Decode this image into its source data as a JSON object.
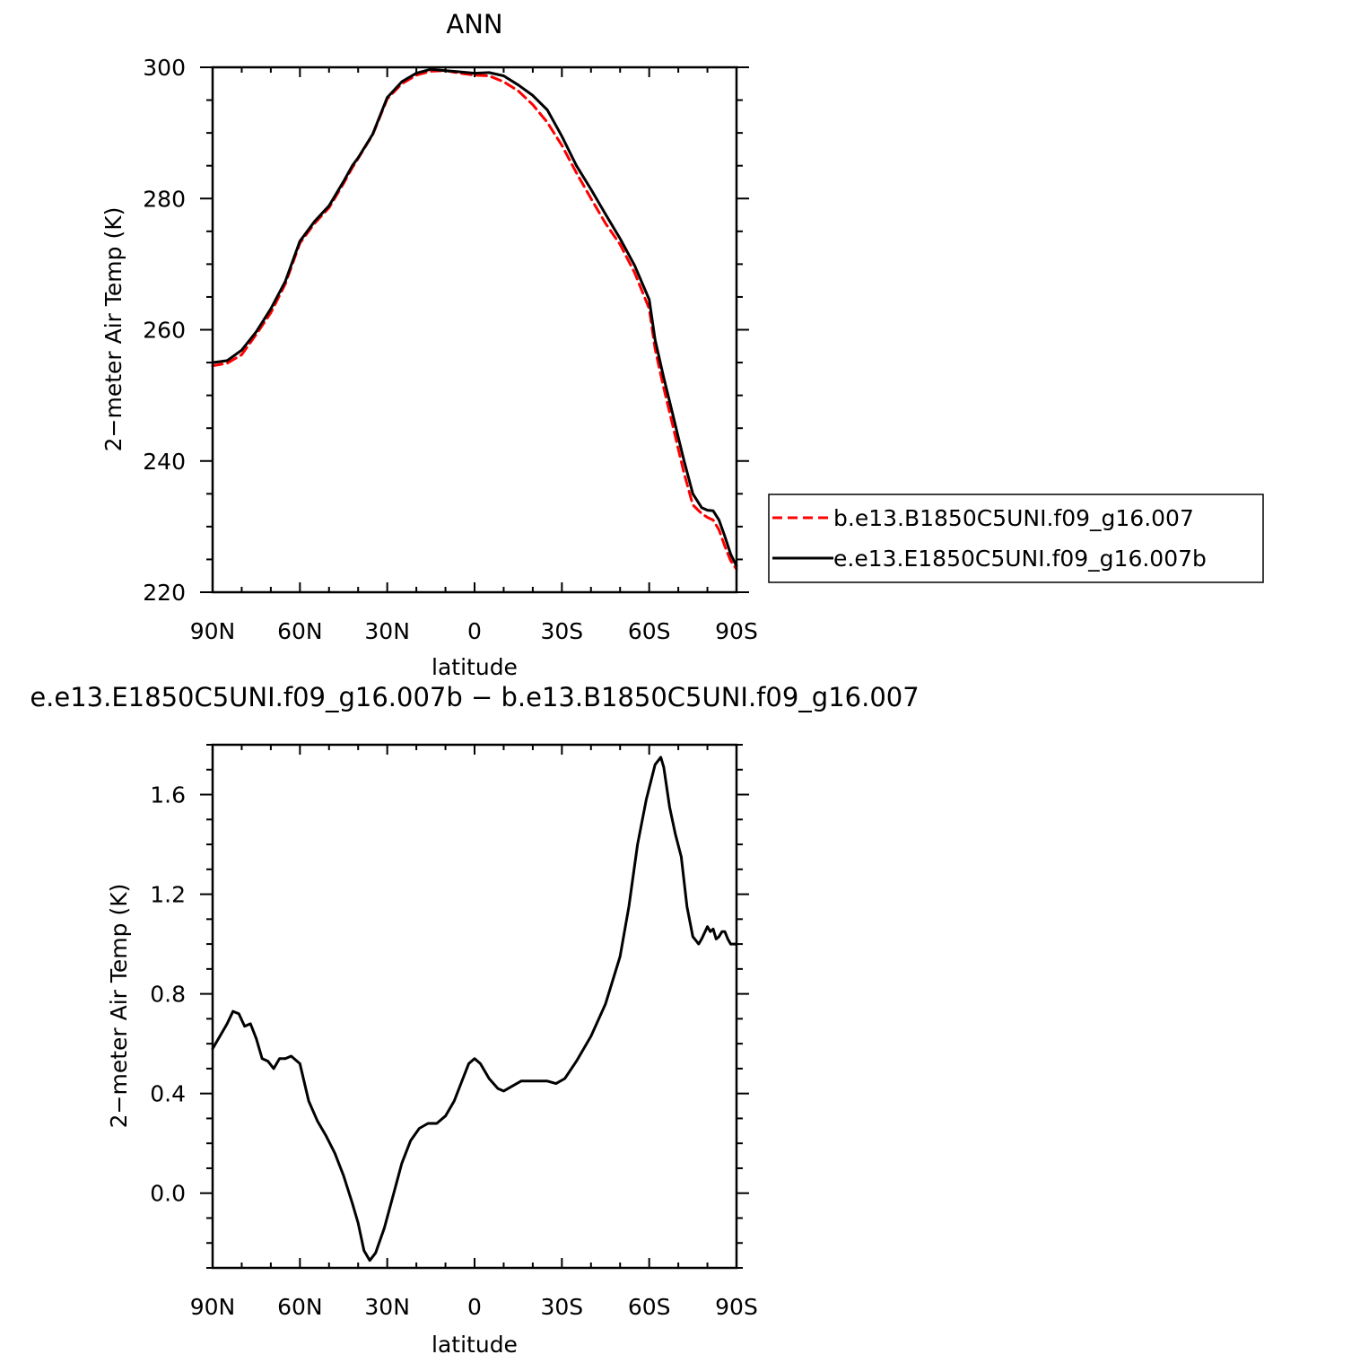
{
  "chart_data": [
    {
      "type": "line",
      "title": "ANN",
      "xlabel": "latitude",
      "ylabel": "2−meter Air Temp (K)",
      "xlim": [
        90,
        -90
      ],
      "ylim": [
        220,
        300
      ],
      "xticks": [
        90,
        60,
        30,
        0,
        -30,
        -60,
        -90
      ],
      "xticklabels": [
        "90N",
        "60N",
        "30N",
        "0",
        "30S",
        "60S",
        "90S"
      ],
      "yticks": [
        220,
        240,
        260,
        280,
        300
      ],
      "yticklabels": [
        "220",
        "240",
        "260",
        "280",
        "300"
      ],
      "legend_position": "right",
      "series": [
        {
          "name": "b.e13.B1850C5UNI.f09_g16.007",
          "color": "#ff0000",
          "style": "dashed",
          "x": [
            90,
            85,
            80,
            75,
            70,
            65,
            60,
            55,
            50,
            45,
            42,
            40,
            35,
            30,
            25,
            20,
            15,
            10,
            5,
            0,
            -5,
            -10,
            -15,
            -20,
            -25,
            -30,
            -35,
            -40,
            -45,
            -50,
            -55,
            -60,
            -62,
            -65,
            -68,
            -70,
            -72,
            -75,
            -78,
            -80,
            -82,
            -84,
            -86,
            -88,
            -90
          ],
          "y": [
            254.5,
            254.9,
            256.2,
            259.3,
            262.6,
            267.0,
            273.2,
            276.2,
            278.6,
            282.3,
            284.7,
            286.1,
            289.7,
            295.2,
            297.5,
            298.8,
            299.4,
            299.5,
            299.1,
            298.8,
            298.7,
            297.8,
            296.4,
            294.3,
            291.6,
            288.1,
            283.9,
            280.0,
            276.2,
            273.0,
            268.7,
            263.2,
            257.1,
            251.1,
            245.6,
            241.8,
            238.1,
            233.3,
            232.0,
            231.4,
            231.0,
            229.5,
            227.0,
            224.8,
            223.5
          ]
        },
        {
          "name": "e.e13.E1850C5UNI.f09_g16.007b",
          "color": "#000000",
          "style": "solid",
          "x": [
            90,
            85,
            80,
            75,
            70,
            65,
            60,
            55,
            50,
            45,
            42,
            40,
            35,
            30,
            25,
            20,
            15,
            10,
            5,
            0,
            -5,
            -10,
            -15,
            -20,
            -25,
            -30,
            -35,
            -40,
            -45,
            -50,
            -55,
            -60,
            -62,
            -65,
            -68,
            -70,
            -72,
            -75,
            -78,
            -80,
            -82,
            -84,
            -86,
            -88,
            -90
          ],
          "y": [
            255.0,
            255.3,
            256.9,
            259.7,
            263.2,
            267.4,
            273.5,
            276.5,
            278.9,
            282.6,
            285.0,
            286.2,
            289.8,
            295.4,
            297.8,
            299.1,
            299.7,
            299.5,
            299.3,
            299.1,
            299.2,
            298.7,
            297.3,
            295.7,
            293.5,
            289.5,
            285.0,
            281.4,
            277.6,
            273.9,
            269.8,
            264.6,
            258.5,
            252.7,
            247.3,
            243.6,
            240.0,
            235.0,
            232.9,
            232.5,
            232.4,
            231.0,
            228.5,
            225.8,
            224.0
          ]
        }
      ]
    },
    {
      "type": "line",
      "title": "e.e13.E1850C5UNI.f09_g16.007b − b.e13.B1850C5UNI.f09_g16.007",
      "xlabel": "latitude",
      "ylabel": "2−meter Air Temp (K)",
      "xlim": [
        90,
        -90
      ],
      "ylim": [
        -0.3,
        1.8
      ],
      "xticks": [
        90,
        60,
        30,
        0,
        -30,
        -60,
        -90
      ],
      "xticklabels": [
        "90N",
        "60N",
        "30N",
        "0",
        "30S",
        "60S",
        "90S"
      ],
      "yticks": [
        0.0,
        0.4,
        0.8,
        1.2,
        1.6
      ],
      "yticklabels": [
        "0.0",
        "0.4",
        "0.8",
        "1.2",
        "1.6"
      ],
      "series": [
        {
          "color": "#000000",
          "style": "solid",
          "x": [
            90,
            88,
            85,
            83,
            81,
            79,
            77,
            75,
            73,
            71,
            69,
            67,
            65,
            63,
            60,
            57,
            54,
            51,
            48,
            45,
            42,
            40,
            38,
            36,
            34,
            31,
            28,
            25,
            22,
            19,
            16,
            13,
            10,
            7,
            4,
            2,
            0,
            -2,
            -5,
            -8,
            -10,
            -13,
            -16,
            -20,
            -25,
            -28,
            -31,
            -35,
            -40,
            -45,
            -50,
            -53,
            -56,
            -59,
            -62,
            -64,
            -65,
            -67,
            -69,
            -71,
            -73,
            -75,
            -77,
            -78,
            -80,
            -81,
            -82,
            -83,
            -84,
            -85,
            -86,
            -87,
            -88,
            -90
          ],
          "y": [
            0.58,
            0.62,
            0.68,
            0.73,
            0.72,
            0.67,
            0.68,
            0.62,
            0.54,
            0.53,
            0.5,
            0.54,
            0.54,
            0.55,
            0.52,
            0.37,
            0.29,
            0.23,
            0.16,
            0.07,
            -0.04,
            -0.12,
            -0.23,
            -0.27,
            -0.24,
            -0.14,
            -0.01,
            0.12,
            0.21,
            0.26,
            0.28,
            0.28,
            0.31,
            0.37,
            0.46,
            0.52,
            0.54,
            0.52,
            0.46,
            0.42,
            0.41,
            0.43,
            0.45,
            0.45,
            0.45,
            0.44,
            0.46,
            0.53,
            0.63,
            0.76,
            0.95,
            1.15,
            1.4,
            1.58,
            1.72,
            1.75,
            1.71,
            1.55,
            1.44,
            1.35,
            1.15,
            1.03,
            1.0,
            1.02,
            1.07,
            1.05,
            1.06,
            1.02,
            1.03,
            1.05,
            1.05,
            1.02,
            1.0,
            1.0
          ]
        }
      ]
    }
  ]
}
